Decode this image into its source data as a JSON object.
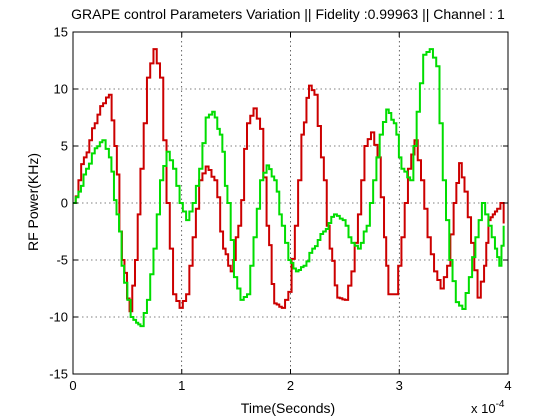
{
  "chart_data": {
    "type": "line",
    "title": "GRAPE control Parameters Variation || Fidelity :0.99963 || Channel : 1",
    "xlabel": "Time(Seconds)",
    "ylabel": "RF Power(KHz)",
    "x_multiplier": "x 10",
    "x_multiplier_exponent": "-4",
    "xlim": [
      0,
      4
    ],
    "ylim": [
      -15,
      15
    ],
    "x_ticks": [
      0,
      1,
      2,
      3,
      4
    ],
    "y_ticks": [
      -15,
      -10,
      -5,
      0,
      5,
      10,
      15
    ],
    "grid": true,
    "step": true,
    "series": [
      {
        "color": "#cc0000",
        "x": [
          0,
          0.1,
          0.2,
          0.25,
          0.33,
          0.38,
          0.45,
          0.52,
          0.57,
          0.62,
          0.68,
          0.74,
          0.8,
          0.86,
          0.92,
          0.98,
          1.04,
          1.1,
          1.16,
          1.22,
          1.3,
          1.38,
          1.45,
          1.52,
          1.6,
          1.66,
          1.72,
          1.78,
          1.85,
          1.92,
          1.98,
          2.04,
          2.1,
          2.17,
          2.22,
          2.28,
          2.36,
          2.43,
          2.5,
          2.56,
          2.62,
          2.68,
          2.74,
          2.8,
          2.86,
          2.9,
          2.96,
          3.02,
          3.08,
          3.14,
          3.2,
          3.26,
          3.32,
          3.38,
          3.44,
          3.5,
          3.55,
          3.6,
          3.66,
          3.72,
          3.78,
          3.82,
          3.86,
          3.9,
          3.93,
          3.96
        ],
        "values": [
          0,
          4,
          7,
          8.5,
          9.5,
          5,
          -5,
          -9.5,
          -5,
          3,
          11,
          13.5,
          11,
          0,
          -8,
          -9.2,
          -8,
          -3,
          2,
          3.2,
          2,
          -4,
          -6,
          -2,
          7,
          8.3,
          6.5,
          -2,
          -8.8,
          -9.2,
          -7.8,
          -2,
          6,
          10.3,
          9.5,
          4,
          -4,
          -8.3,
          -8.5,
          -6,
          -1,
          5,
          6.2,
          4,
          -3,
          -8,
          -8,
          -3,
          3,
          5.5,
          2,
          -3,
          -6,
          -7.5,
          -5.5,
          0,
          3.5,
          1,
          -3.5,
          -8.3,
          -5.5,
          -1.5,
          -1,
          -0.5,
          0,
          -1.8
        ]
      },
      {
        "color": "#00dd00",
        "x": [
          0,
          0.05,
          0.12,
          0.2,
          0.27,
          0.33,
          0.4,
          0.47,
          0.53,
          0.58,
          0.62,
          0.68,
          0.74,
          0.8,
          0.86,
          0.92,
          0.98,
          1.04,
          1.1,
          1.16,
          1.22,
          1.28,
          1.35,
          1.42,
          1.48,
          1.54,
          1.6,
          1.66,
          1.72,
          1.78,
          1.85,
          1.92,
          1.98,
          2.05,
          2.12,
          2.2,
          2.3,
          2.4,
          2.48,
          2.56,
          2.62,
          2.7,
          2.76,
          2.82,
          2.88,
          2.95,
          3.02,
          3.1,
          3.16,
          3.22,
          3.28,
          3.34,
          3.4,
          3.46,
          3.52,
          3.58,
          3.64,
          3.7,
          3.76,
          3.82,
          3.88,
          3.92,
          3.96
        ],
        "values": [
          0,
          1,
          3,
          4.8,
          5.5,
          4,
          -1,
          -7,
          -10,
          -10.5,
          -10.8,
          -8.5,
          -4,
          2,
          4.5,
          3,
          0,
          -1.5,
          0,
          3,
          7.5,
          8,
          6,
          0,
          -6.5,
          -8.5,
          -8,
          -3,
          2,
          3.3,
          2,
          -2,
          -5,
          -6,
          -5.5,
          -4,
          -2.5,
          -1,
          -1.5,
          -3.5,
          -4,
          -2,
          2,
          6,
          8.2,
          7,
          3,
          2,
          8,
          13,
          13.5,
          12,
          2,
          -5,
          -8.7,
          -9.3,
          -6.5,
          -3,
          0,
          -2,
          -4,
          -5.5,
          -2
        ]
      }
    ]
  }
}
